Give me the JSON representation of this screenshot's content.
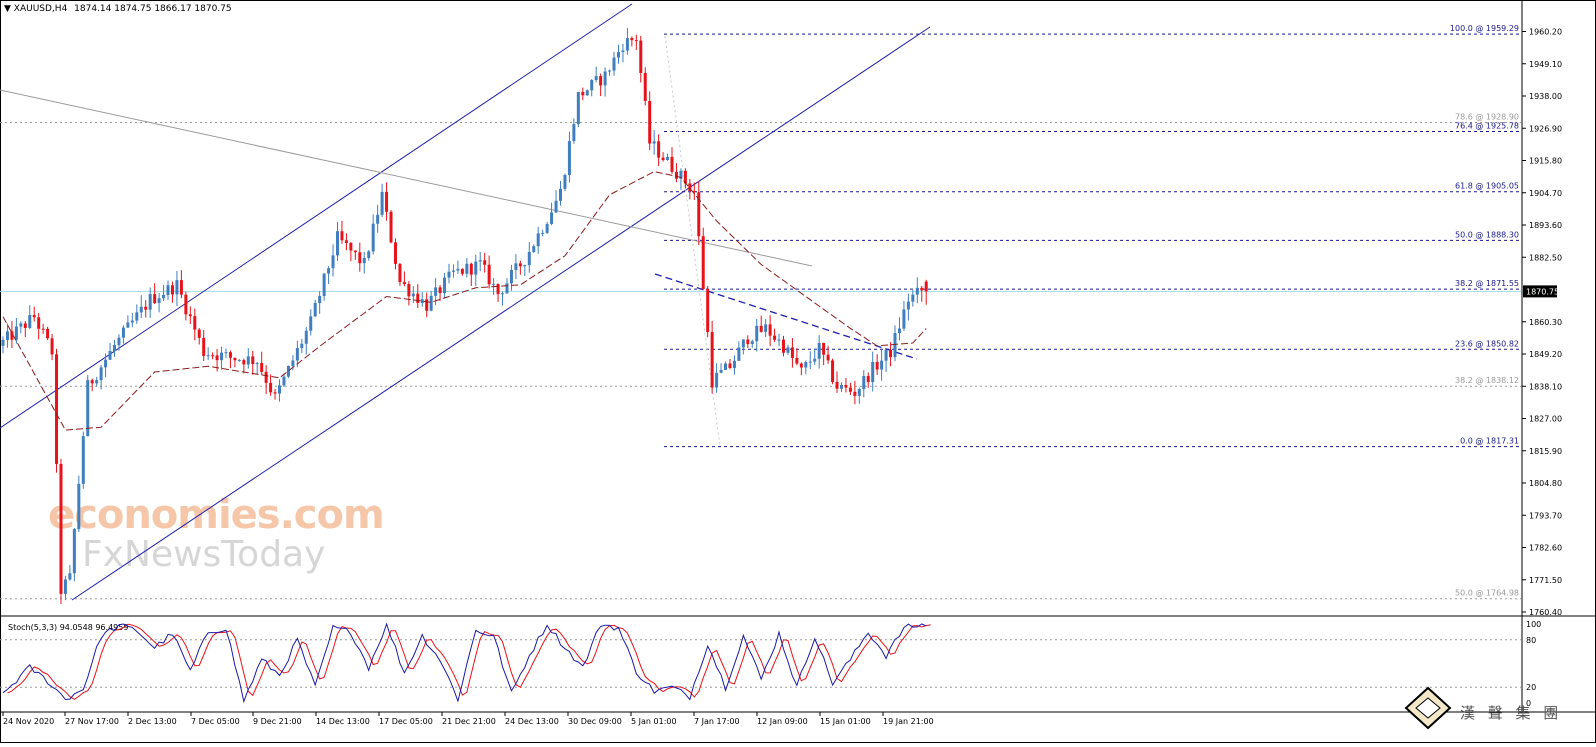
{
  "header": {
    "symbol": "XAUUSD,H4",
    "ohlc": "1874.14 1874.75 1866.17 1870.75"
  },
  "current_price_label": "1870.75",
  "watermark": {
    "line1": "economies.com",
    "line2": "FxNewsToday",
    "corner_cn": "漢 聲 集 團"
  },
  "colors": {
    "bull": "#3f7fbf",
    "bear": "#e8131a",
    "channel": "#1f1faf",
    "ma": "#8b1a1a",
    "fib_blue": "#1a1a8f",
    "fib_grey": "#9a9a9a",
    "stoch_main": "#1a1aa8",
    "stoch_signal": "#e8131a",
    "current_line": "#9fd9e8"
  },
  "price_axis_labels": [
    "1960.20",
    "1949.10",
    "1938.00",
    "1926.90",
    "1915.80",
    "1904.70",
    "1893.60",
    "1882.50",
    "1860.30",
    "1849.20",
    "1838.10",
    "1827.00",
    "1815.90",
    "1804.80",
    "1793.70",
    "1782.60",
    "1771.50",
    "1760.40"
  ],
  "stoch": {
    "label": "Stoch(5,3,3) 94.0548 96.4959",
    "levels": [
      "100",
      "80",
      "20",
      "0"
    ]
  },
  "time_labels": [
    "24 Nov 2020",
    "27 Nov 17:00",
    "2 Dec 13:00",
    "7 Dec 05:00",
    "9 Dec 21:00",
    "14 Dec 13:00",
    "17 Dec 05:00",
    "21 Dec 21:00",
    "24 Dec 13:00",
    "30 Dec 09:00",
    "5 Jan 01:00",
    "7 Jan 17:00",
    "12 Jan 09:00",
    "15 Jan 01:00",
    "19 Jan 21:00"
  ],
  "chart_data": {
    "type": "candlestick",
    "symbol": "XAUUSD",
    "timeframe": "H4",
    "ylim": [
      1758,
      1967
    ],
    "last": {
      "open": 1874.14,
      "high": 1874.75,
      "low": 1866.17,
      "close": 1870.75
    },
    "fib_levels": [
      {
        "label": "100.0 @ 1959.29",
        "price": 1959.29,
        "style": "blue"
      },
      {
        "label": "78.6 @ 1928.90",
        "price": 1928.9,
        "style": "grey"
      },
      {
        "label": "76.4 @ 1925.78",
        "price": 1925.78,
        "style": "blue"
      },
      {
        "label": "61.8 @ 1905.05",
        "price": 1905.05,
        "style": "blue"
      },
      {
        "label": "50.0 @ 1888.30",
        "price": 1888.3,
        "style": "blue"
      },
      {
        "label": "38.2 @ 1871.55",
        "price": 1871.55,
        "style": "blue"
      },
      {
        "label": "23.6 @ 1850.82",
        "price": 1850.82,
        "style": "blue"
      },
      {
        "label": "38.2 @ 1838.12",
        "price": 1838.12,
        "style": "grey"
      },
      {
        "label": "0.0 @ 1817.31",
        "price": 1817.31,
        "style": "blue"
      },
      {
        "label": "50.0 @ 1764.98",
        "price": 1764.98,
        "style": "grey"
      }
    ],
    "price_anchors": [
      [
        0,
        1852
      ],
      [
        8,
        1862
      ],
      [
        12,
        1850
      ],
      [
        14,
        1768
      ],
      [
        16,
        1772
      ],
      [
        20,
        1838
      ],
      [
        26,
        1852
      ],
      [
        34,
        1868
      ],
      [
        40,
        1873
      ],
      [
        46,
        1850
      ],
      [
        52,
        1848
      ],
      [
        58,
        1847
      ],
      [
        62,
        1834
      ],
      [
        70,
        1860
      ],
      [
        76,
        1889
      ],
      [
        82,
        1880
      ],
      [
        86,
        1904
      ],
      [
        90,
        1874
      ],
      [
        96,
        1866
      ],
      [
        102,
        1877
      ],
      [
        108,
        1880
      ],
      [
        112,
        1870
      ],
      [
        118,
        1882
      ],
      [
        122,
        1893
      ],
      [
        126,
        1905
      ],
      [
        130,
        1938
      ],
      [
        136,
        1945
      ],
      [
        140,
        1956
      ],
      [
        143,
        1958
      ],
      [
        146,
        1922
      ],
      [
        152,
        1912
      ],
      [
        156,
        1905
      ],
      [
        160,
        1840
      ],
      [
        164,
        1845
      ],
      [
        168,
        1855
      ],
      [
        172,
        1858
      ],
      [
        176,
        1852
      ],
      [
        180,
        1843
      ],
      [
        184,
        1851
      ],
      [
        188,
        1838
      ],
      [
        192,
        1836
      ],
      [
        196,
        1844
      ],
      [
        200,
        1850
      ],
      [
        204,
        1868
      ],
      [
        207,
        1871
      ]
    ],
    "ma_anchors": [
      [
        0,
        1862
      ],
      [
        14,
        1823
      ],
      [
        22,
        1824
      ],
      [
        34,
        1843
      ],
      [
        46,
        1845
      ],
      [
        62,
        1841
      ],
      [
        72,
        1853
      ],
      [
        86,
        1869
      ],
      [
        96,
        1867
      ],
      [
        106,
        1872
      ],
      [
        116,
        1873
      ],
      [
        126,
        1883
      ],
      [
        136,
        1904
      ],
      [
        146,
        1912
      ],
      [
        152,
        1910
      ],
      [
        160,
        1895
      ],
      [
        170,
        1880
      ],
      [
        180,
        1869
      ],
      [
        190,
        1858
      ],
      [
        196,
        1852
      ],
      [
        204,
        1853
      ],
      [
        207,
        1858
      ]
    ],
    "stoch_anchors": [
      [
        0,
        12
      ],
      [
        6,
        45
      ],
      [
        10,
        28
      ],
      [
        14,
        5
      ],
      [
        18,
        18
      ],
      [
        22,
        85
      ],
      [
        26,
        98
      ],
      [
        30,
        92
      ],
      [
        34,
        70
      ],
      [
        38,
        88
      ],
      [
        42,
        40
      ],
      [
        46,
        90
      ],
      [
        50,
        95
      ],
      [
        54,
        3
      ],
      [
        58,
        55
      ],
      [
        62,
        35
      ],
      [
        66,
        80
      ],
      [
        70,
        20
      ],
      [
        74,
        95
      ],
      [
        78,
        90
      ],
      [
        82,
        45
      ],
      [
        86,
        100
      ],
      [
        90,
        38
      ],
      [
        94,
        85
      ],
      [
        98,
        55
      ],
      [
        102,
        5
      ],
      [
        106,
        92
      ],
      [
        110,
        85
      ],
      [
        114,
        12
      ],
      [
        118,
        60
      ],
      [
        122,
        100
      ],
      [
        126,
        70
      ],
      [
        130,
        45
      ],
      [
        134,
        100
      ],
      [
        138,
        95
      ],
      [
        142,
        40
      ],
      [
        146,
        15
      ],
      [
        150,
        20
      ],
      [
        154,
        8
      ],
      [
        158,
        75
      ],
      [
        162,
        20
      ],
      [
        166,
        85
      ],
      [
        170,
        30
      ],
      [
        174,
        88
      ],
      [
        178,
        20
      ],
      [
        182,
        85
      ],
      [
        186,
        25
      ],
      [
        190,
        55
      ],
      [
        194,
        90
      ],
      [
        198,
        60
      ],
      [
        202,
        95
      ],
      [
        207,
        100
      ]
    ],
    "annotations": [
      "ascending channel",
      "descending trend line",
      "descending neckline"
    ]
  }
}
